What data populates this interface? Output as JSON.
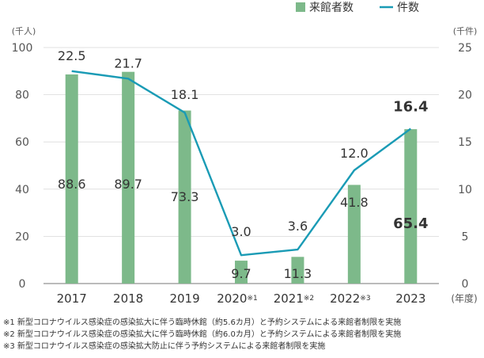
{
  "chart_data": {
    "type": "bar",
    "categories": [
      "2017",
      "2018",
      "2019",
      "2020",
      "2021",
      "2022",
      "2023"
    ],
    "category_notes": [
      "",
      "",
      "",
      "※1",
      "※2",
      "※3",
      ""
    ],
    "series": [
      {
        "name": "来館者数",
        "type": "bar",
        "axis": "left",
        "values": [
          88.6,
          89.7,
          73.3,
          9.7,
          11.3,
          41.8,
          65.4
        ],
        "labels": [
          "88.6",
          "89.7",
          "73.3",
          "9.7",
          "11.3",
          "41.8",
          "65.4"
        ],
        "color": "#7db98a"
      },
      {
        "name": "件数",
        "type": "line",
        "axis": "right",
        "values": [
          22.5,
          21.7,
          18.1,
          3.0,
          3.6,
          12.0,
          16.4
        ],
        "labels": [
          "22.5",
          "21.7",
          "18.1",
          "3.0",
          "3.6",
          "12.0",
          "16.4"
        ],
        "color": "#1a9bb5"
      }
    ],
    "y_left": {
      "unit": "(千人)",
      "ylim": [
        0,
        100
      ],
      "ticks": [
        "0",
        "20",
        "40",
        "60",
        "80",
        "100"
      ]
    },
    "y_right": {
      "unit": "(千件)",
      "ylim": [
        0,
        25
      ],
      "ticks": [
        "0",
        "5",
        "10",
        "15",
        "20",
        "25"
      ]
    },
    "x_unit": "(年度)",
    "highlight_index": 6,
    "grid": "horizontal",
    "legend_position": "top-right"
  },
  "notes": [
    "※1 新型コロナウイルス感染症の感染拡大に伴う臨時休館（約5.6カ月）と予約システムによる来館者制限を実施",
    "※2 新型コロナウイルス感染症の感染拡大に伴う臨時休館（約6.0カ月）と予約システムによる来館者制限を実施",
    "※3 新型コロナウイルス感染症の感染拡大防止に伴う予約システムによる来館者制限を実施"
  ]
}
